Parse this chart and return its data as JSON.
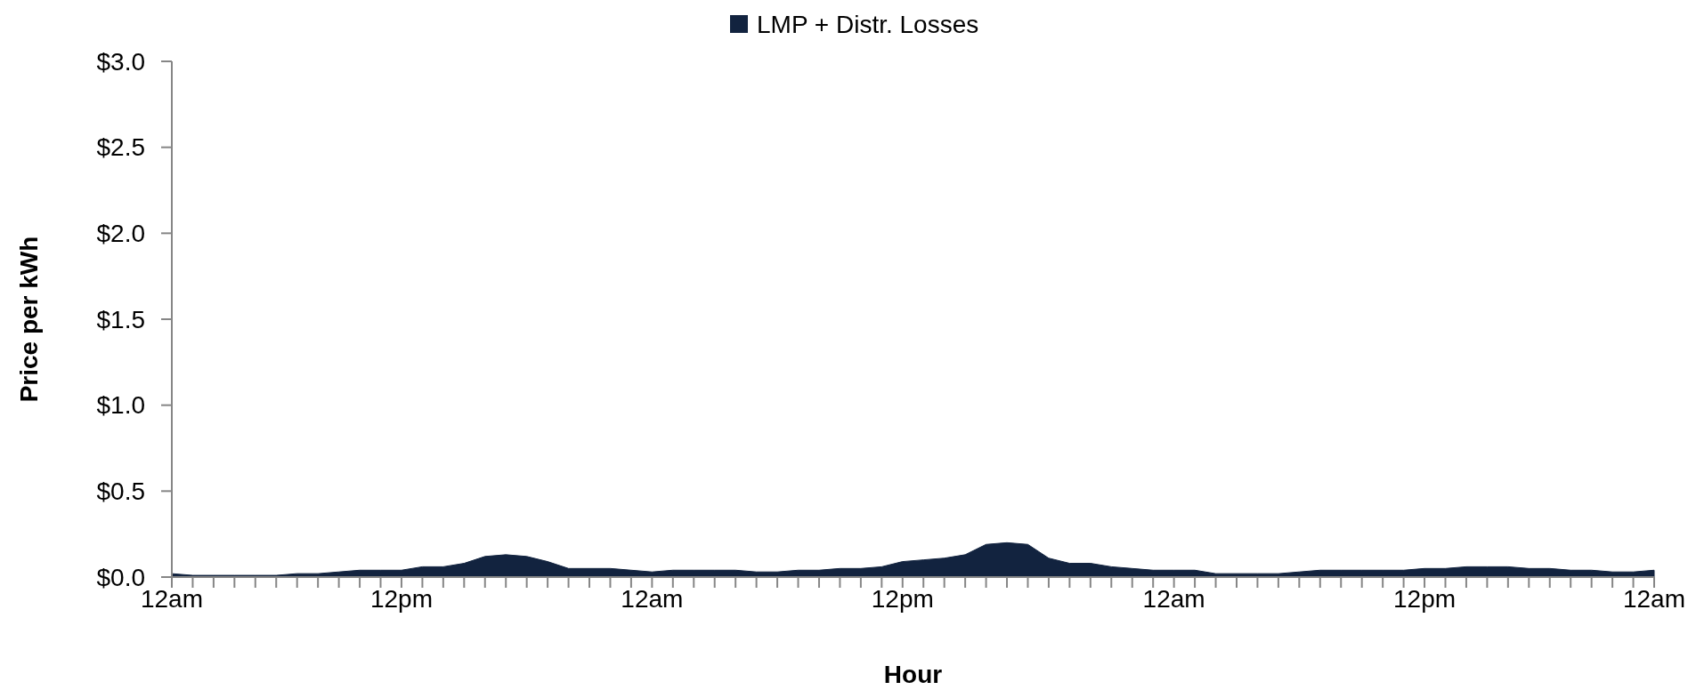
{
  "chart_data": {
    "type": "area",
    "xlabel": "Hour",
    "ylabel": "Price per kWh",
    "legend": "top",
    "categories": [
      "12am",
      null,
      null,
      null,
      null,
      null,
      null,
      null,
      null,
      null,
      null,
      "12pm",
      null,
      null,
      null,
      null,
      null,
      null,
      null,
      null,
      null,
      null,
      null,
      "12am",
      null,
      null,
      null,
      null,
      null,
      null,
      null,
      null,
      null,
      null,
      null,
      "12pm",
      null,
      null,
      null,
      null,
      null,
      null,
      null,
      null,
      null,
      null,
      null,
      null,
      "12am",
      null,
      null,
      null,
      null,
      null,
      null,
      null,
      null,
      null,
      null,
      null,
      "12pm",
      null,
      null,
      null,
      null,
      null,
      null,
      null,
      null,
      null,
      null,
      "12am"
    ],
    "series": [
      {
        "name": "LMP + Distr. Losses",
        "color": "#12233f",
        "values": [
          0.02,
          0.01,
          0.01,
          0.01,
          0.01,
          0.01,
          0.02,
          0.02,
          0.03,
          0.04,
          0.04,
          0.04,
          0.06,
          0.06,
          0.08,
          0.12,
          0.13,
          0.12,
          0.09,
          0.05,
          0.05,
          0.05,
          0.04,
          0.03,
          0.04,
          0.04,
          0.04,
          0.04,
          0.03,
          0.03,
          0.04,
          0.04,
          0.05,
          0.05,
          0.06,
          0.09,
          0.1,
          0.11,
          0.13,
          0.19,
          0.2,
          0.19,
          0.11,
          0.08,
          0.08,
          0.06,
          0.05,
          0.04,
          0.04,
          0.04,
          0.02,
          0.02,
          0.02,
          0.02,
          0.03,
          0.04,
          0.04,
          0.04,
          0.04,
          0.04,
          0.05,
          0.05,
          0.06,
          0.06,
          0.06,
          0.05,
          0.05,
          0.04,
          0.04,
          0.03,
          0.03,
          0.04
        ]
      }
    ],
    "ylim": [
      0,
      3
    ],
    "yticks": [
      {
        "value": 0,
        "label": "$0.0"
      },
      {
        "value": 0.5,
        "label": "$0.5"
      },
      {
        "value": 1,
        "label": "$1.0"
      },
      {
        "value": 1.5,
        "label": "$1.5"
      },
      {
        "value": 2,
        "label": "$2.0"
      },
      {
        "value": 2.5,
        "label": "$2.5"
      },
      {
        "value": 3,
        "label": "$3.0"
      }
    ]
  }
}
